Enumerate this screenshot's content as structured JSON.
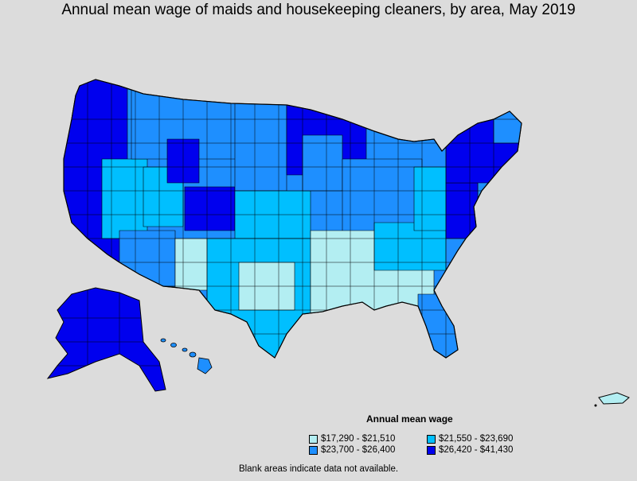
{
  "title": "Annual mean wage of maids and housekeeping cleaners, by area, May 2019",
  "legend": {
    "title": "Annual mean wage",
    "items": [
      {
        "label": "$17,290 - $21,510",
        "color": "#b3eef2"
      },
      {
        "label": "$21,550 - $23,690",
        "color": "#00bfff"
      },
      {
        "label": "$23,700 - $26,400",
        "color": "#1e8fff"
      },
      {
        "label": "$26,420 - $41,430",
        "color": "#0000ee"
      }
    ]
  },
  "note": "Blank areas indicate data not available.",
  "colors": {
    "background": "#dcdcdc",
    "border": "#000000"
  }
}
